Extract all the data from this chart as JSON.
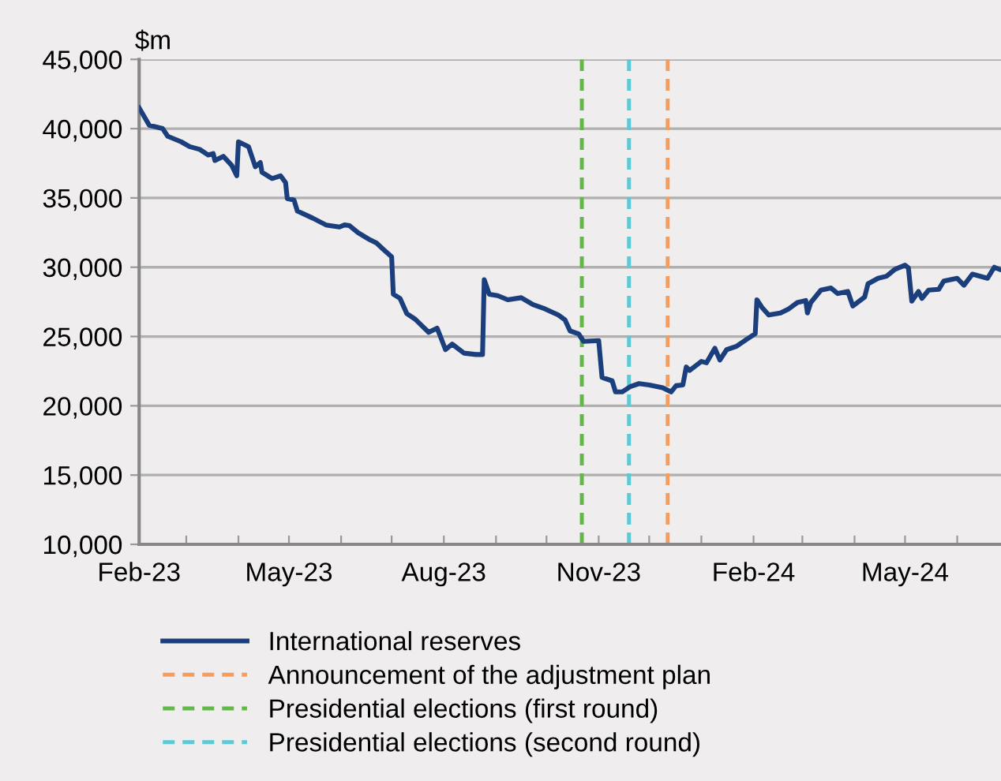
{
  "chart_data": {
    "type": "line",
    "ylabel": "$m",
    "x": [
      "2023-02-01",
      "2023-02-07",
      "2023-02-15",
      "2023-02-18",
      "2023-02-26",
      "2023-03-03",
      "2023-03-09",
      "2023-03-14",
      "2023-03-17",
      "2023-03-18",
      "2023-03-23",
      "2023-03-28",
      "2023-03-31",
      "2023-04-01",
      "2023-04-07",
      "2023-04-11",
      "2023-04-14",
      "2023-04-15",
      "2023-04-21",
      "2023-04-26",
      "2023-04-29",
      "2023-04-30",
      "2023-05-04",
      "2023-05-06",
      "2023-05-15",
      "2023-05-23",
      "2023-05-31",
      "2023-06-03",
      "2023-06-06",
      "2023-06-11",
      "2023-06-17",
      "2023-06-22",
      "2023-06-26",
      "2023-07-01",
      "2023-07-02",
      "2023-07-06",
      "2023-07-10",
      "2023-07-15",
      "2023-07-23",
      "2023-07-28",
      "2023-07-30",
      "2023-08-02",
      "2023-08-06",
      "2023-08-13",
      "2023-08-20",
      "2023-08-24",
      "2023-08-25",
      "2023-08-28",
      "2023-09-02",
      "2023-09-08",
      "2023-09-16",
      "2023-09-23",
      "2023-09-30",
      "2023-10-08",
      "2023-10-12",
      "2023-10-15",
      "2023-10-20",
      "2023-10-23",
      "2023-11-01",
      "2023-11-03",
      "2023-11-09",
      "2023-11-11",
      "2023-11-15",
      "2023-11-20",
      "2023-11-25",
      "2023-12-01",
      "2023-12-09",
      "2023-12-14",
      "2023-12-17",
      "2023-12-21",
      "2023-12-23",
      "2023-12-25",
      "2024-01-01",
      "2024-01-04",
      "2024-01-09",
      "2024-01-12",
      "2024-01-16",
      "2024-01-22",
      "2024-01-28",
      "2024-02-02",
      "2024-02-03",
      "2024-02-06",
      "2024-02-10",
      "2024-02-17",
      "2024-02-22",
      "2024-02-27",
      "2024-03-03",
      "2024-03-04",
      "2024-03-06",
      "2024-03-12",
      "2024-03-18",
      "2024-03-22",
      "2024-03-28",
      "2024-03-31",
      "2024-04-07",
      "2024-04-09",
      "2024-04-15",
      "2024-04-20",
      "2024-04-25",
      "2024-05-01",
      "2024-05-03",
      "2024-05-05",
      "2024-05-09",
      "2024-05-11",
      "2024-05-15",
      "2024-05-21",
      "2024-05-24",
      "2024-06-01",
      "2024-06-05",
      "2024-06-10",
      "2024-06-19",
      "2024-06-23",
      "2024-06-26"
    ],
    "series": [
      {
        "name": "International reserves",
        "color": "#1b3f7d",
        "values": [
          41500,
          40250,
          40000,
          39450,
          39050,
          38700,
          38500,
          38100,
          38200,
          37700,
          38000,
          37350,
          36600,
          39050,
          38700,
          37250,
          37550,
          36850,
          36400,
          36600,
          36100,
          34950,
          34850,
          34050,
          33550,
          33050,
          32900,
          33050,
          33000,
          32500,
          32050,
          31750,
          31300,
          30750,
          28050,
          27750,
          26650,
          26250,
          25300,
          25600,
          25000,
          24050,
          24450,
          23800,
          23700,
          23700,
          29100,
          28050,
          27950,
          27650,
          27800,
          27300,
          27000,
          26550,
          26200,
          25400,
          25200,
          24650,
          24700,
          22050,
          21800,
          21000,
          21000,
          21400,
          21600,
          21500,
          21300,
          21000,
          21450,
          21500,
          22800,
          22550,
          23200,
          23100,
          24150,
          23300,
          24050,
          24300,
          24800,
          25200,
          27650,
          27100,
          26550,
          26700,
          27000,
          27450,
          27600,
          26700,
          27450,
          28350,
          28500,
          28100,
          28250,
          27200,
          27850,
          28800,
          29200,
          29350,
          29850,
          30150,
          29950,
          27550,
          28250,
          27750,
          28350,
          28400,
          29000,
          29200,
          28700,
          29500,
          29200,
          30000,
          29850
        ]
      }
    ],
    "xlim": [
      "2023-02-01",
      "2024-06-27"
    ],
    "xticks": [
      {
        "value": "2023-02-01",
        "label": "Feb-23"
      },
      {
        "value": "2023-03-01",
        "label": null
      },
      {
        "value": "2023-04-01",
        "label": null
      },
      {
        "value": "2023-05-01",
        "label": "May-23"
      },
      {
        "value": "2023-06-01",
        "label": null
      },
      {
        "value": "2023-07-01",
        "label": null
      },
      {
        "value": "2023-08-01",
        "label": "Aug-23"
      },
      {
        "value": "2023-09-01",
        "label": null
      },
      {
        "value": "2023-10-01",
        "label": null
      },
      {
        "value": "2023-11-01",
        "label": "Nov-23"
      },
      {
        "value": "2023-12-01",
        "label": null
      },
      {
        "value": "2024-01-01",
        "label": null
      },
      {
        "value": "2024-02-01",
        "label": "Feb-24"
      },
      {
        "value": "2024-03-01",
        "label": null
      },
      {
        "value": "2024-04-01",
        "label": null
      },
      {
        "value": "2024-05-01",
        "label": "May-24"
      },
      {
        "value": "2024-06-01",
        "label": null
      }
    ],
    "ylim": [
      10000,
      45000
    ],
    "yticks": [
      {
        "value": 10000,
        "label": "10,000"
      },
      {
        "value": 15000,
        "label": "15,000"
      },
      {
        "value": 20000,
        "label": "20,000"
      },
      {
        "value": 25000,
        "label": "25,000"
      },
      {
        "value": 30000,
        "label": "30,000"
      },
      {
        "value": 35000,
        "label": "35,000"
      },
      {
        "value": 40000,
        "label": "40,000"
      },
      {
        "value": 45000,
        "label": "45,000"
      }
    ],
    "ref_lines": [
      {
        "axis": "x",
        "value": "2023-12-12",
        "label": "Announcement of the adjustment plan",
        "color": "#f79d5c",
        "line_style": "dashed"
      },
      {
        "axis": "x",
        "value": "2023-10-22",
        "label": "Presidential elections (first round)",
        "color": "#63b947",
        "line_style": "dashed"
      },
      {
        "axis": "x",
        "value": "2023-11-19",
        "label": "Presidential elections (second round)",
        "color": "#5ec8d3",
        "line_style": "dashed"
      }
    ],
    "grid": "y",
    "legend": "bottom",
    "marker": "none",
    "line_style": "solid"
  }
}
